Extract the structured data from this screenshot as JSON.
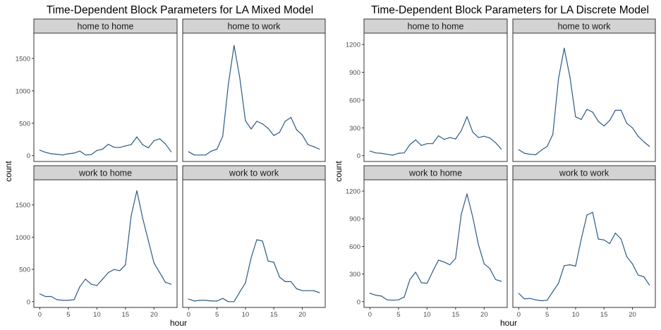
{
  "chart_data": [
    {
      "type": "line",
      "title": "Time-Dependent Block Parameters for LA Mixed Model",
      "xlabel": "hour",
      "ylabel": "count",
      "xlim": [
        0,
        23
      ],
      "ylim": [
        0,
        1800
      ],
      "yticks": [
        0,
        500,
        1000,
        1500
      ],
      "xticks": [
        0,
        5,
        10,
        15,
        20
      ],
      "grid": false,
      "line_color": "#2c5a87",
      "strip_color": "#d3d3d3",
      "facets": [
        {
          "name": "home to home",
          "x": [
            0,
            1,
            2,
            3,
            4,
            5,
            6,
            7,
            8,
            9,
            10,
            11,
            12,
            13,
            14,
            15,
            16,
            17,
            18,
            19,
            20,
            21,
            22,
            23
          ],
          "values": [
            85,
            50,
            30,
            20,
            10,
            30,
            40,
            70,
            10,
            15,
            80,
            100,
            175,
            130,
            125,
            150,
            170,
            290,
            170,
            120,
            230,
            260,
            180,
            60
          ]
        },
        {
          "name": "home to work",
          "x": [
            0,
            1,
            2,
            3,
            4,
            5,
            6,
            7,
            8,
            9,
            10,
            11,
            12,
            13,
            14,
            15,
            16,
            17,
            18,
            19,
            20,
            21,
            22,
            23
          ],
          "values": [
            60,
            10,
            10,
            10,
            70,
            100,
            300,
            1100,
            1700,
            1200,
            540,
            410,
            530,
            490,
            420,
            310,
            360,
            530,
            590,
            400,
            320,
            170,
            140,
            100
          ]
        },
        {
          "name": "work to home",
          "x": [
            0,
            1,
            2,
            3,
            4,
            5,
            6,
            7,
            8,
            9,
            10,
            11,
            12,
            13,
            14,
            15,
            16,
            17,
            18,
            19,
            20,
            21,
            22,
            23
          ],
          "values": [
            120,
            80,
            80,
            30,
            20,
            20,
            30,
            230,
            350,
            270,
            250,
            350,
            450,
            500,
            480,
            570,
            1330,
            1720,
            1300,
            950,
            600,
            450,
            300,
            270
          ]
        },
        {
          "name": "work to work",
          "x": [
            0,
            1,
            2,
            3,
            4,
            5,
            6,
            7,
            8,
            9,
            10,
            11,
            12,
            13,
            14,
            15,
            16,
            17,
            18,
            19,
            20,
            21,
            22,
            23
          ],
          "values": [
            40,
            10,
            20,
            20,
            10,
            10,
            50,
            0,
            0,
            150,
            290,
            680,
            960,
            940,
            630,
            610,
            380,
            310,
            310,
            200,
            170,
            170,
            170,
            140
          ]
        }
      ]
    },
    {
      "type": "line",
      "title": "Time-Dependent Block Parameters for LA Discrete Model",
      "xlabel": "hour",
      "ylabel": "count",
      "xlim": [
        0,
        23
      ],
      "ylim": [
        0,
        1260
      ],
      "yticks": [
        0,
        300,
        600,
        900,
        1200
      ],
      "xticks": [
        0,
        5,
        10,
        15,
        20
      ],
      "grid": false,
      "line_color": "#2c5a87",
      "strip_color": "#d3d3d3",
      "facets": [
        {
          "name": "home to home",
          "x": [
            0,
            1,
            2,
            3,
            4,
            5,
            6,
            7,
            8,
            9,
            10,
            11,
            12,
            13,
            14,
            15,
            16,
            17,
            18,
            19,
            20,
            21,
            22,
            23
          ],
          "values": [
            50,
            30,
            25,
            15,
            5,
            25,
            30,
            120,
            170,
            110,
            130,
            130,
            215,
            175,
            195,
            180,
            270,
            420,
            255,
            195,
            210,
            190,
            140,
            70
          ]
        },
        {
          "name": "home to work",
          "x": [
            0,
            1,
            2,
            3,
            4,
            5,
            6,
            7,
            8,
            9,
            10,
            11,
            12,
            13,
            14,
            15,
            16,
            17,
            18,
            19,
            20,
            21,
            22,
            23
          ],
          "values": [
            65,
            25,
            15,
            10,
            60,
            100,
            230,
            830,
            1160,
            850,
            420,
            390,
            500,
            470,
            370,
            320,
            380,
            490,
            490,
            350,
            300,
            210,
            150,
            100
          ]
        },
        {
          "name": "work to home",
          "x": [
            0,
            1,
            2,
            3,
            4,
            5,
            6,
            7,
            8,
            9,
            10,
            11,
            12,
            13,
            14,
            15,
            16,
            17,
            18,
            19,
            20,
            21,
            22,
            23
          ],
          "values": [
            90,
            70,
            60,
            20,
            15,
            20,
            50,
            240,
            320,
            205,
            200,
            330,
            450,
            430,
            400,
            470,
            950,
            1170,
            920,
            620,
            410,
            360,
            240,
            220
          ]
        },
        {
          "name": "work to work",
          "x": [
            0,
            1,
            2,
            3,
            4,
            5,
            6,
            7,
            8,
            9,
            10,
            11,
            12,
            13,
            14,
            15,
            16,
            17,
            18,
            19,
            20,
            21,
            22,
            23
          ],
          "values": [
            90,
            30,
            35,
            20,
            10,
            15,
            110,
            200,
            390,
            400,
            385,
            680,
            940,
            970,
            680,
            670,
            630,
            745,
            680,
            490,
            410,
            290,
            270,
            180
          ]
        }
      ]
    }
  ]
}
